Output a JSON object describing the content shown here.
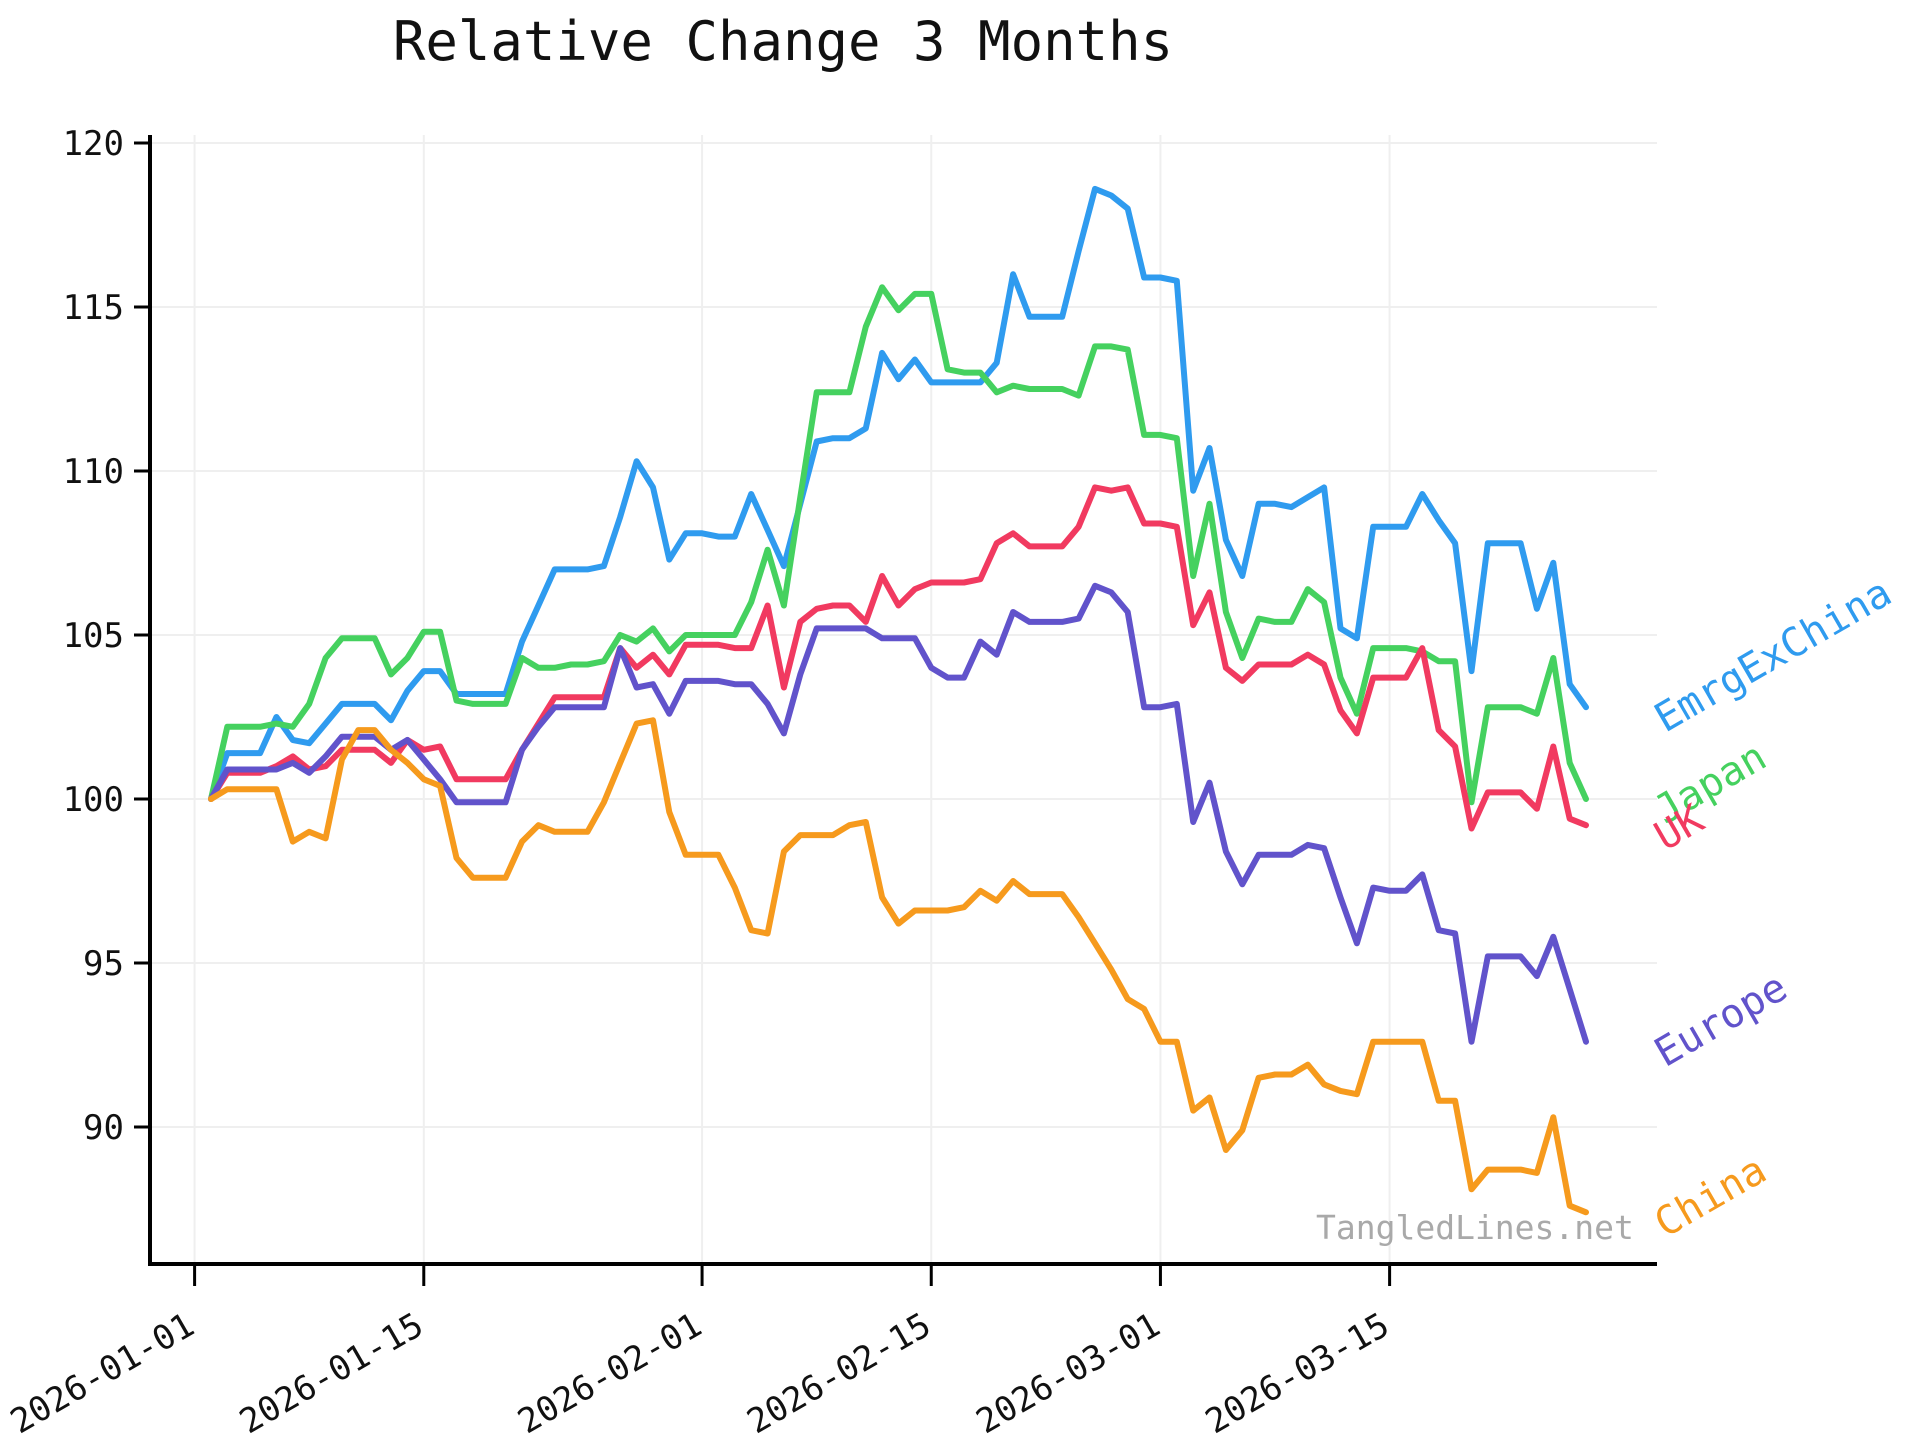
{
  "title": "Relative Change 3 Months",
  "watermark": "TangledLines.net",
  "chart_data": {
    "type": "line",
    "title": "Relative Change 3 Months",
    "xlabel": "",
    "ylabel": "",
    "grid": true,
    "legend_position": "right-inline-labels",
    "ylim": [
      85.8,
      120.6
    ],
    "y_ticks": [
      "90",
      "95",
      "100",
      "105",
      "110",
      "115",
      "120"
    ],
    "x_ticks": [
      {
        "label": "2026-01-01",
        "day_offset": 0
      },
      {
        "label": "2026-01-15",
        "day_offset": 14
      },
      {
        "label": "2026-02-01",
        "day_offset": 31
      },
      {
        "label": "2026-02-15",
        "day_offset": 45
      },
      {
        "label": "2026-03-01",
        "day_offset": 59
      },
      {
        "label": "2026-03-15",
        "day_offset": 73
      }
    ],
    "x": [
      "2026-01-02",
      "2026-01-03",
      "2026-01-04",
      "2026-01-05",
      "2026-01-06",
      "2026-01-07",
      "2026-01-08",
      "2026-01-09",
      "2026-01-10",
      "2026-01-11",
      "2026-01-12",
      "2026-01-13",
      "2026-01-14",
      "2026-01-15",
      "2026-01-16",
      "2026-01-17",
      "2026-01-18",
      "2026-01-19",
      "2026-01-20",
      "2026-01-21",
      "2026-01-22",
      "2026-01-23",
      "2026-01-24",
      "2026-01-25",
      "2026-01-26",
      "2026-01-27",
      "2026-01-28",
      "2026-01-29",
      "2026-01-30",
      "2026-01-31",
      "2026-02-01",
      "2026-02-02",
      "2026-02-03",
      "2026-02-04",
      "2026-02-05",
      "2026-02-06",
      "2026-02-07",
      "2026-02-08",
      "2026-02-09",
      "2026-02-10",
      "2026-02-11",
      "2026-02-12",
      "2026-02-13",
      "2026-02-14",
      "2026-02-15",
      "2026-02-16",
      "2026-02-17",
      "2026-02-18",
      "2026-02-19",
      "2026-02-20",
      "2026-02-21",
      "2026-02-22",
      "2026-02-23",
      "2026-02-24",
      "2026-02-25",
      "2026-02-26",
      "2026-02-27",
      "2026-02-28",
      "2026-03-01",
      "2026-03-02",
      "2026-03-03",
      "2026-03-04",
      "2026-03-05",
      "2026-03-06",
      "2026-03-07",
      "2026-03-08",
      "2026-03-09",
      "2026-03-10",
      "2026-03-11",
      "2026-03-12",
      "2026-03-13",
      "2026-03-14",
      "2026-03-15",
      "2026-03-16",
      "2026-03-17",
      "2026-03-18",
      "2026-03-19",
      "2026-03-20",
      "2026-03-21",
      "2026-03-22",
      "2026-03-23",
      "2026-03-24",
      "2026-03-25",
      "2026-03-26",
      "2026-03-27"
    ],
    "series": [
      {
        "name": "EmrgExChina",
        "color": "#2f9bef",
        "values": [
          100.0,
          101.4,
          101.4,
          101.4,
          102.5,
          101.8,
          101.7,
          102.3,
          102.9,
          102.9,
          102.9,
          102.4,
          103.3,
          103.9,
          103.9,
          103.2,
          103.2,
          103.2,
          103.2,
          104.8,
          105.9,
          107.0,
          107.0,
          107.0,
          107.1,
          108.6,
          110.3,
          109.5,
          107.3,
          108.1,
          108.1,
          108.0,
          108.0,
          109.3,
          108.2,
          107.1,
          109.0,
          110.9,
          111.0,
          111.0,
          111.3,
          113.6,
          112.8,
          113.4,
          112.7,
          112.7,
          112.7,
          112.7,
          113.3,
          116.0,
          114.7,
          114.7,
          114.7,
          116.7,
          118.6,
          118.4,
          118.0,
          115.9,
          115.9,
          115.8,
          109.4,
          110.7,
          107.9,
          106.8,
          109.0,
          109.0,
          108.9,
          109.2,
          109.5,
          105.2,
          104.9,
          108.3,
          108.3,
          108.3,
          109.3,
          108.5,
          107.8,
          103.9,
          107.8,
          107.8,
          107.8,
          105.8,
          107.2,
          103.5,
          102.8
        ]
      },
      {
        "name": "Japan",
        "color": "#45d15f",
        "values": [
          100.0,
          102.2,
          102.2,
          102.2,
          102.3,
          102.2,
          102.9,
          104.3,
          104.9,
          104.9,
          104.9,
          103.8,
          104.3,
          105.1,
          105.1,
          103.0,
          102.9,
          102.9,
          102.9,
          104.3,
          104.0,
          104.0,
          104.1,
          104.1,
          104.2,
          105.0,
          104.8,
          105.2,
          104.5,
          105.0,
          105.0,
          105.0,
          105.0,
          106.0,
          107.6,
          105.9,
          109.2,
          112.4,
          112.4,
          112.4,
          114.4,
          115.6,
          114.9,
          115.4,
          115.4,
          113.1,
          113.0,
          113.0,
          112.4,
          112.6,
          112.5,
          112.5,
          112.5,
          112.3,
          113.8,
          113.8,
          113.7,
          111.1,
          111.1,
          111.0,
          106.8,
          109.0,
          105.7,
          104.3,
          105.5,
          105.4,
          105.4,
          106.4,
          106.0,
          103.7,
          102.6,
          104.6,
          104.6,
          104.6,
          104.5,
          104.2,
          104.2,
          99.9,
          102.8,
          102.8,
          102.8,
          102.6,
          104.3,
          101.1,
          100.0
        ]
      },
      {
        "name": "UK",
        "color": "#f13a60",
        "values": [
          100.0,
          100.8,
          100.8,
          100.8,
          101.0,
          101.3,
          100.9,
          101.0,
          101.5,
          101.5,
          101.5,
          101.1,
          101.8,
          101.5,
          101.6,
          100.6,
          100.6,
          100.6,
          100.6,
          101.5,
          102.3,
          103.1,
          103.1,
          103.1,
          103.1,
          104.6,
          104.0,
          104.4,
          103.8,
          104.7,
          104.7,
          104.7,
          104.6,
          104.6,
          105.9,
          103.4,
          105.4,
          105.8,
          105.9,
          105.9,
          105.4,
          106.8,
          105.9,
          106.4,
          106.6,
          106.6,
          106.6,
          106.7,
          107.8,
          108.1,
          107.7,
          107.7,
          107.7,
          108.3,
          109.5,
          109.4,
          109.5,
          108.4,
          108.4,
          108.3,
          105.3,
          106.3,
          104.0,
          103.6,
          104.1,
          104.1,
          104.1,
          104.4,
          104.1,
          102.7,
          102.0,
          103.7,
          103.7,
          103.7,
          104.6,
          102.1,
          101.6,
          99.1,
          100.2,
          100.2,
          100.2,
          99.7,
          101.6,
          99.4,
          99.2
        ]
      },
      {
        "name": "Europe",
        "color": "#6153cb",
        "values": [
          100.0,
          100.9,
          100.9,
          100.9,
          100.9,
          101.1,
          100.8,
          101.3,
          101.9,
          101.9,
          101.9,
          101.5,
          101.8,
          101.2,
          100.6,
          99.9,
          99.9,
          99.9,
          99.9,
          101.5,
          102.2,
          102.8,
          102.8,
          102.8,
          102.8,
          104.6,
          103.4,
          103.5,
          102.6,
          103.6,
          103.6,
          103.6,
          103.5,
          103.5,
          102.9,
          102.0,
          103.8,
          105.2,
          105.2,
          105.2,
          105.2,
          104.9,
          104.9,
          104.9,
          104.0,
          103.7,
          103.7,
          104.8,
          104.4,
          105.7,
          105.4,
          105.4,
          105.4,
          105.5,
          106.5,
          106.3,
          105.7,
          102.8,
          102.8,
          102.9,
          99.3,
          100.5,
          98.4,
          97.4,
          98.3,
          98.3,
          98.3,
          98.6,
          98.5,
          97.0,
          95.6,
          97.3,
          97.2,
          97.2,
          97.7,
          96.0,
          95.9,
          92.6,
          95.2,
          95.2,
          95.2,
          94.6,
          95.8,
          94.2,
          92.6
        ]
      },
      {
        "name": "China",
        "color": "#f69a1d",
        "values": [
          100.0,
          100.3,
          100.3,
          100.3,
          100.3,
          98.7,
          99.0,
          98.8,
          101.2,
          102.1,
          102.1,
          101.5,
          101.1,
          100.6,
          100.4,
          98.2,
          97.6,
          97.6,
          97.6,
          98.7,
          99.2,
          99.0,
          99.0,
          99.0,
          99.9,
          101.1,
          102.3,
          102.4,
          99.6,
          98.3,
          98.3,
          98.3,
          97.3,
          96.0,
          95.9,
          98.4,
          98.9,
          98.9,
          98.9,
          99.2,
          99.3,
          97.0,
          96.2,
          96.6,
          96.6,
          96.6,
          96.7,
          97.2,
          96.9,
          97.5,
          97.1,
          97.1,
          97.1,
          96.4,
          95.6,
          94.8,
          93.9,
          93.6,
          92.6,
          92.6,
          90.5,
          90.9,
          89.3,
          89.9,
          91.5,
          91.6,
          91.6,
          91.9,
          91.3,
          91.1,
          91.0,
          92.6,
          92.6,
          92.6,
          92.6,
          90.8,
          90.8,
          88.1,
          88.7,
          88.7,
          88.7,
          88.6,
          90.3,
          87.6,
          87.4
        ]
      }
    ],
    "style": {
      "grid_color": "#efefef",
      "spine_color": "#000000",
      "tick_label_color": "#111111",
      "watermark_color": "#a9a9a9",
      "background": "#ffffff"
    }
  }
}
